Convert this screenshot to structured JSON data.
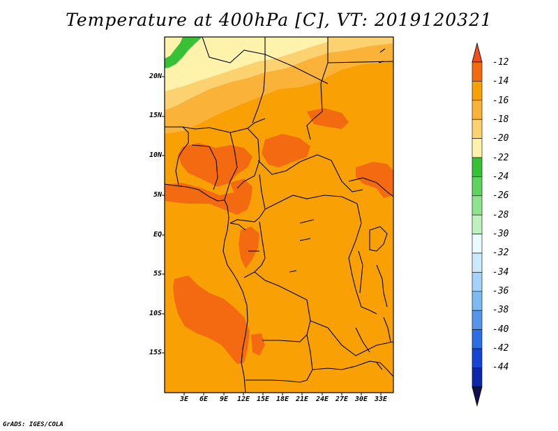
{
  "title": "Temperature at 400hPa [C], VT: 2019120321",
  "credit": "GrADS: IGES/COLA",
  "lat_labels": [
    "20N",
    "15N",
    "10N",
    "5N",
    "EQ",
    "5S",
    "10S",
    "15S"
  ],
  "lon_labels": [
    "3E",
    "6E",
    "9E",
    "12E",
    "15E",
    "18E",
    "21E",
    "24E",
    "27E",
    "30E",
    "33E"
  ],
  "colorbar": {
    "labels": [
      "-12",
      "-14",
      "-16",
      "-18",
      "-20",
      "-22",
      "-24",
      "-26",
      "-28",
      "-30",
      "-32",
      "-34",
      "-36",
      "-38",
      "-40",
      "-42",
      "-44"
    ],
    "colors": [
      "#f24d1c",
      "#f46a10",
      "#f8a004",
      "#fab338",
      "#fcd270",
      "#fff3ac",
      "#36c136",
      "#5fd35f",
      "#8ee48c",
      "#bef2bc",
      "#e9fbff",
      "#cbe9ff",
      "#a5d2fa",
      "#7cbaf2",
      "#5596ec",
      "#2c6ee4",
      "#1546d1",
      "#0a28a8",
      "#10104f"
    ]
  }
}
